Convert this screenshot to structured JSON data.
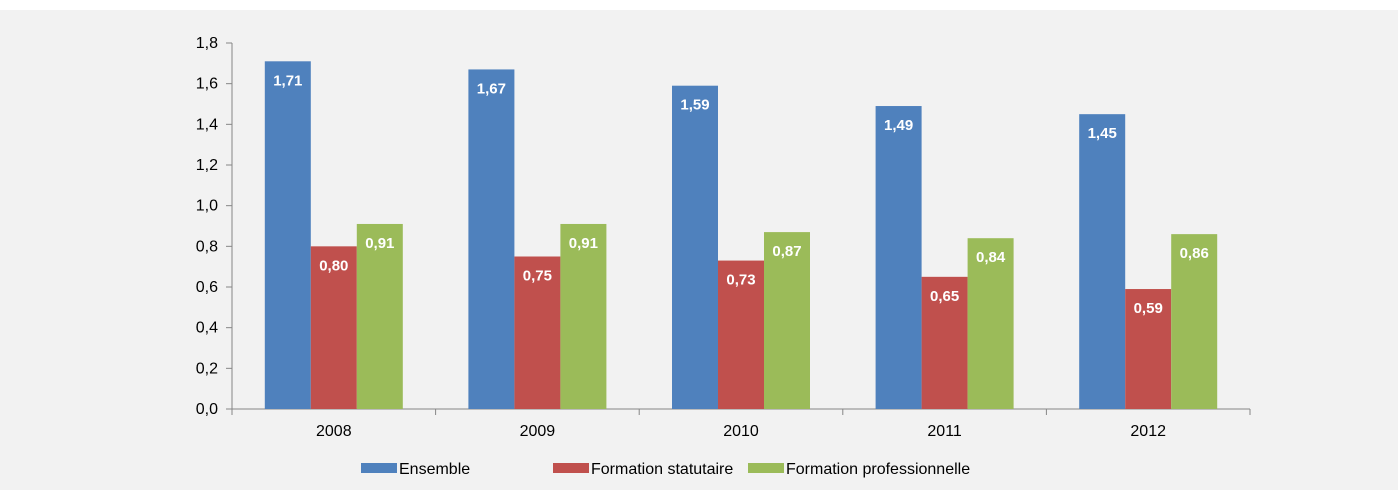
{
  "chart_data": {
    "type": "bar",
    "categories": [
      "2008",
      "2009",
      "2010",
      "2011",
      "2012"
    ],
    "series": [
      {
        "name": "Ensemble",
        "color": "#4f81bd",
        "values": [
          1.71,
          1.67,
          1.59,
          1.49,
          1.45
        ],
        "labels": [
          "1,71",
          "1,67",
          "1,59",
          "1,49",
          "1,45"
        ]
      },
      {
        "name": "Formation statutaire",
        "color": "#c0504d",
        "values": [
          0.8,
          0.75,
          0.73,
          0.65,
          0.59
        ],
        "labels": [
          "0,80",
          "0,75",
          "0,73",
          "0,65",
          "0,59"
        ]
      },
      {
        "name": "Formation professionnelle",
        "color": "#9bbb59",
        "values": [
          0.91,
          0.91,
          0.87,
          0.84,
          0.86
        ],
        "labels": [
          "0,91",
          "0,91",
          "0,87",
          "0,84",
          "0,86"
        ]
      }
    ],
    "yticks": [
      "0,0",
      "0,2",
      "0,4",
      "0,6",
      "0,8",
      "1,0",
      "1,2",
      "1,4",
      "1,6",
      "1,8"
    ],
    "ylim": [
      0,
      1.8
    ],
    "grid": false,
    "legend": "bottom",
    "title": "",
    "xlabel": "",
    "ylabel": ""
  }
}
